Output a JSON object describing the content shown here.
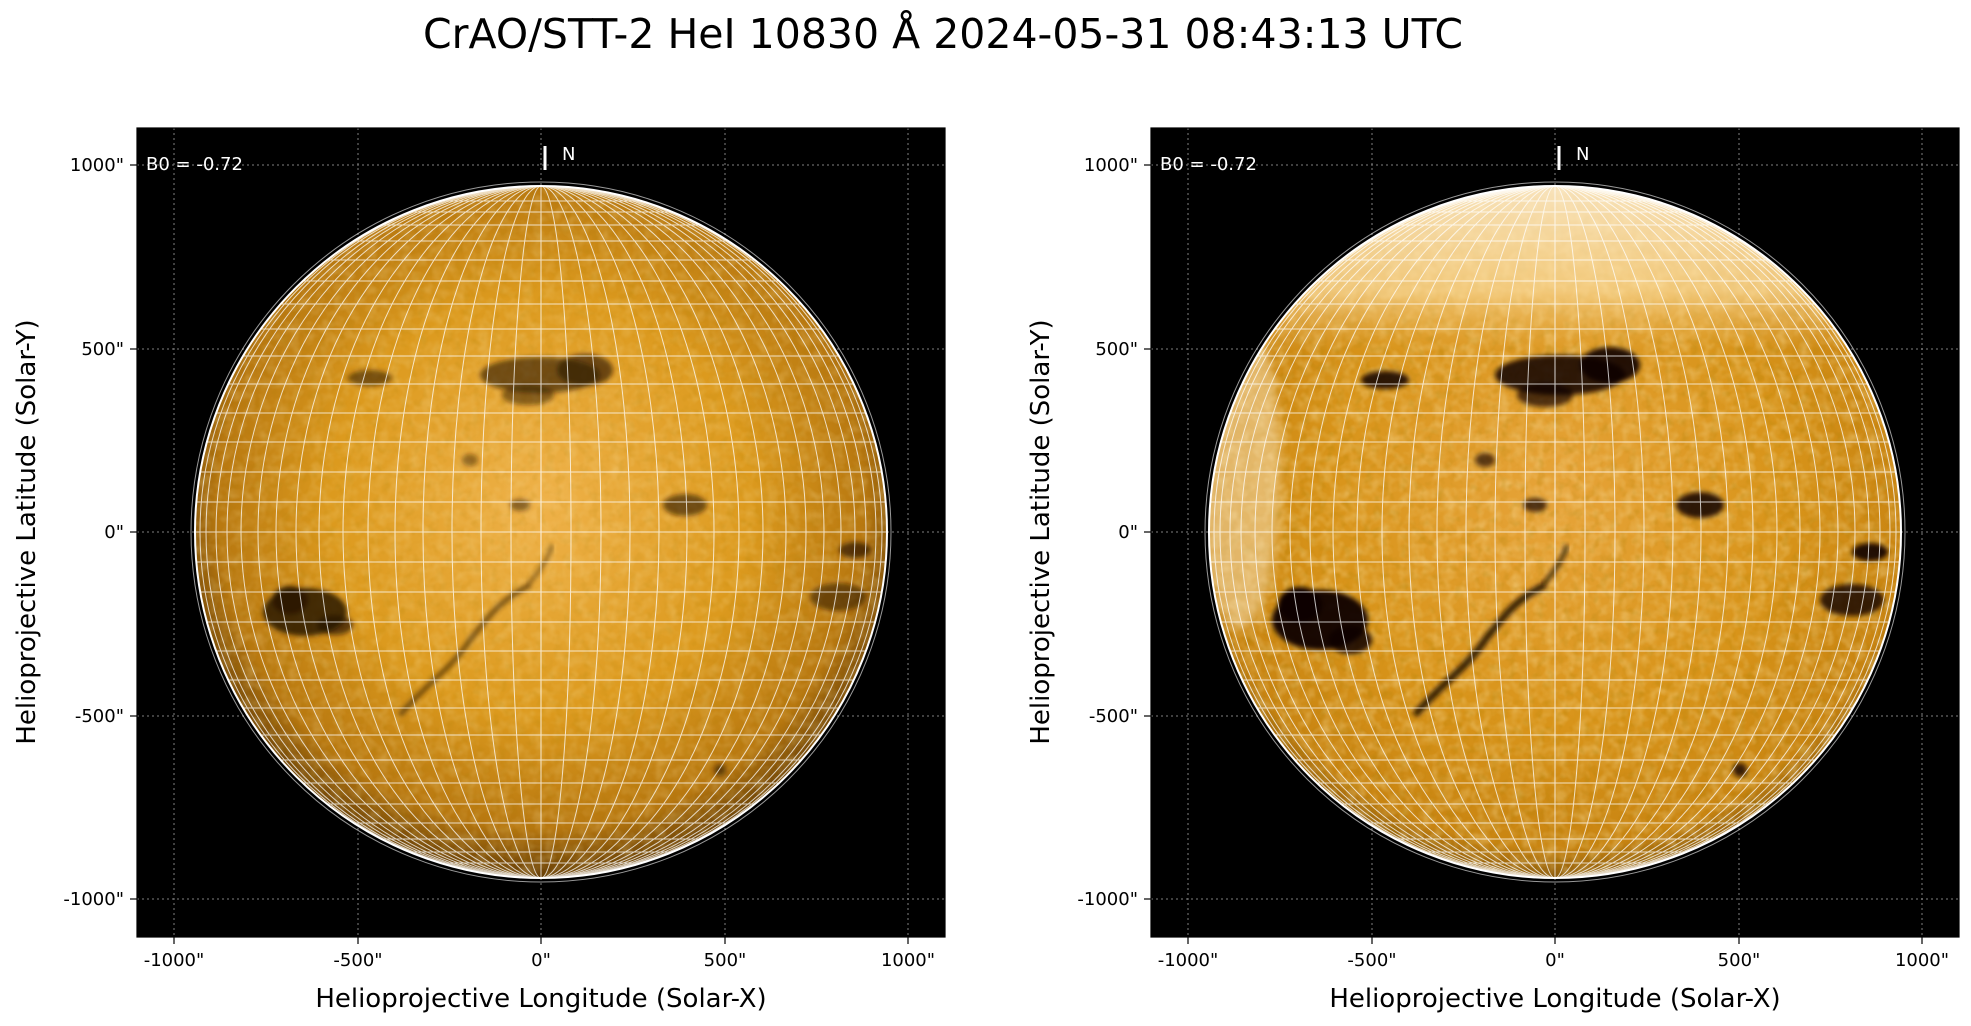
{
  "figure": {
    "title": "CrAO/STT-2 HeI 10830 Å 2024-05-31 08:43:13 UTC"
  },
  "colors": {
    "background": "#000000",
    "disk_base": "#d4900e",
    "disk_highlight": "#f2bf63",
    "limb_dark": "#4a2c05",
    "grid": "#ffffff",
    "feature_dark": "#1a0d00"
  },
  "panels": [
    {
      "id": "left",
      "b0_label": "B0 = -0.72",
      "north_label": "N",
      "xlabel": "Helioprojective Longitude (Solar-X)",
      "ylabel": "Helioprojective Latitude (Solar-Y)",
      "xticks": [
        "-1000\"",
        "-500\"",
        "0\"",
        "500\"",
        "1000\""
      ],
      "yticks": [
        "1000\"",
        "500\"",
        "0\"",
        "-500\"",
        "-1000\""
      ],
      "contrast": "normal"
    },
    {
      "id": "right",
      "b0_label": "B0 = -0.72",
      "north_label": "N",
      "xlabel": "Helioprojective Longitude (Solar-X)",
      "ylabel": "Helioprojective Latitude (Solar-Y)",
      "xticks": [
        "-1000\"",
        "-500\"",
        "0\"",
        "500\"",
        "1000\""
      ],
      "yticks": [
        "1000\"",
        "500\"",
        "0\"",
        "-500\"",
        "-1000\""
      ],
      "contrast": "enhanced"
    }
  ]
}
